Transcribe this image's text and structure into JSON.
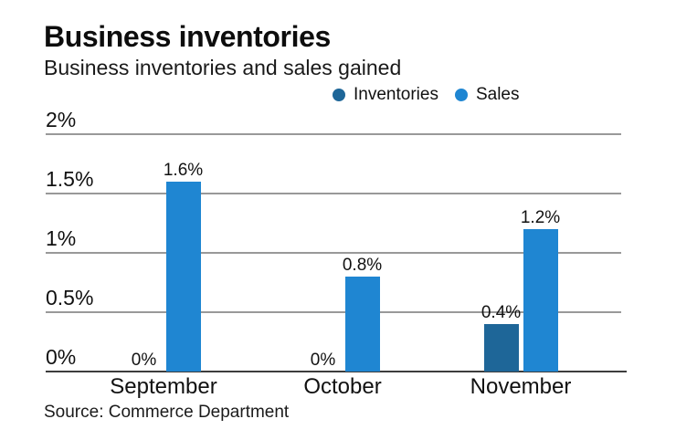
{
  "header": {
    "title": "Business inventories",
    "subtitle": "Business inventories and sales gained"
  },
  "source_label": "Source: Commerce Department",
  "colors": {
    "inventories": "#1e6698",
    "sales": "#1f86d2",
    "gridline": "#999999",
    "baseline": "#3d3d3d",
    "text": "#111111",
    "background": "#ffffff"
  },
  "chart_data": {
    "type": "bar",
    "title": "Business inventories",
    "subtitle": "Business inventories and sales gained",
    "categories": [
      "September",
      "October",
      "November"
    ],
    "series": [
      {
        "name": "Inventories",
        "color": "#1e6698",
        "values": [
          0,
          0,
          0.4
        ],
        "labels": [
          "0%",
          "0%",
          "0.4%"
        ]
      },
      {
        "name": "Sales",
        "color": "#1f86d2",
        "values": [
          1.6,
          0.8,
          1.2
        ],
        "labels": [
          "1.6%",
          "0.8%",
          "1.2%"
        ]
      }
    ],
    "yticks": [
      {
        "value": 0,
        "label": "0%"
      },
      {
        "value": 0.5,
        "label": "0.5%"
      },
      {
        "value": 1,
        "label": "1%"
      },
      {
        "value": 1.5,
        "label": "1.5%"
      },
      {
        "value": 2,
        "label": "2%"
      }
    ],
    "ylim": [
      0,
      2
    ],
    "grid": true,
    "legend_position": "top",
    "source": "Source: Commerce Department"
  }
}
